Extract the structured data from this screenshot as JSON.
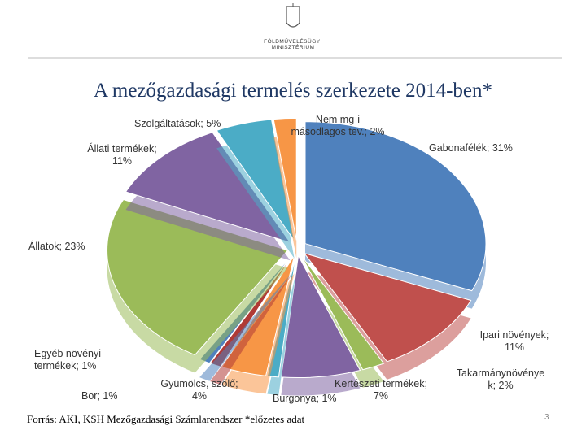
{
  "header": {
    "logo_text": "FÖLDMŰVELÉSÜGYI\nMINISZTÉRIUM"
  },
  "chart_data": {
    "type": "pie",
    "title": "A mezőgazdasági termelés szerkezete 2014-ben*",
    "values": [
      31,
      11,
      2,
      7,
      1,
      4,
      1,
      1,
      23,
      11,
      5,
      2
    ],
    "value_labels": [
      "Gabonafélék; 31%",
      "Ipari növények;\n11%",
      "Takarmánynövénye\nk; 2%",
      "Kertészeti termékek;\n7%",
      "Burgonya; 1%",
      "Gyümölcs, szőlő;\n4%",
      "Bor; 1%",
      "Egyéb növényi\ntermékek; 1%",
      "Állatok; 23%",
      "Állati termékek;\n11%",
      "Szolgáltatások; 5%",
      "Nem mg-i\nmásodlagos tev.; 2%"
    ],
    "colors": [
      "#4f81bd",
      "#c0504d",
      "#9bbb59",
      "#8064a2",
      "#4bacc6",
      "#f79646",
      "#b03a36",
      "#4f81bd",
      "#9bbb59",
      "#8064a2",
      "#4bacc6",
      "#f79646"
    ]
  },
  "footer": {
    "source": "Forrás: AKI, KSH Mezőgazdasági Számlarendszer *előzetes adat",
    "page": "3"
  }
}
